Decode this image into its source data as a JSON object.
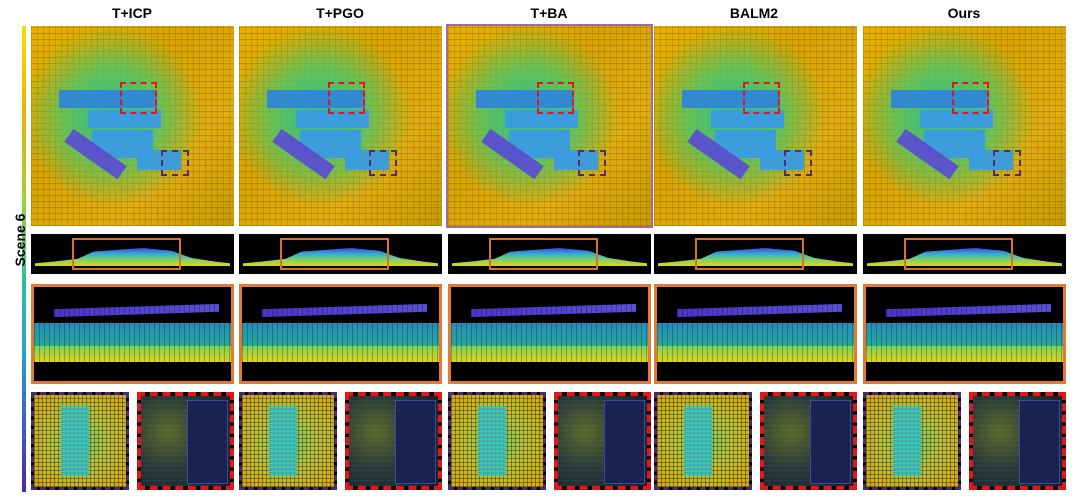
{
  "columns": [
    {
      "title": "T+ICP"
    },
    {
      "title": "T+PGO"
    },
    {
      "title": "T+BA"
    },
    {
      "title": "BALM2"
    },
    {
      "title": "Ours"
    }
  ],
  "row_label": "Scene 6",
  "colors": {
    "red_box": "#e21818",
    "purple_box": "#5a2a6a",
    "orange_box": "#e07a35",
    "colormap": [
      "#f2e200",
      "#9fd23a",
      "#2fbf9a",
      "#2b9fd6",
      "#4a2aa8"
    ]
  }
}
